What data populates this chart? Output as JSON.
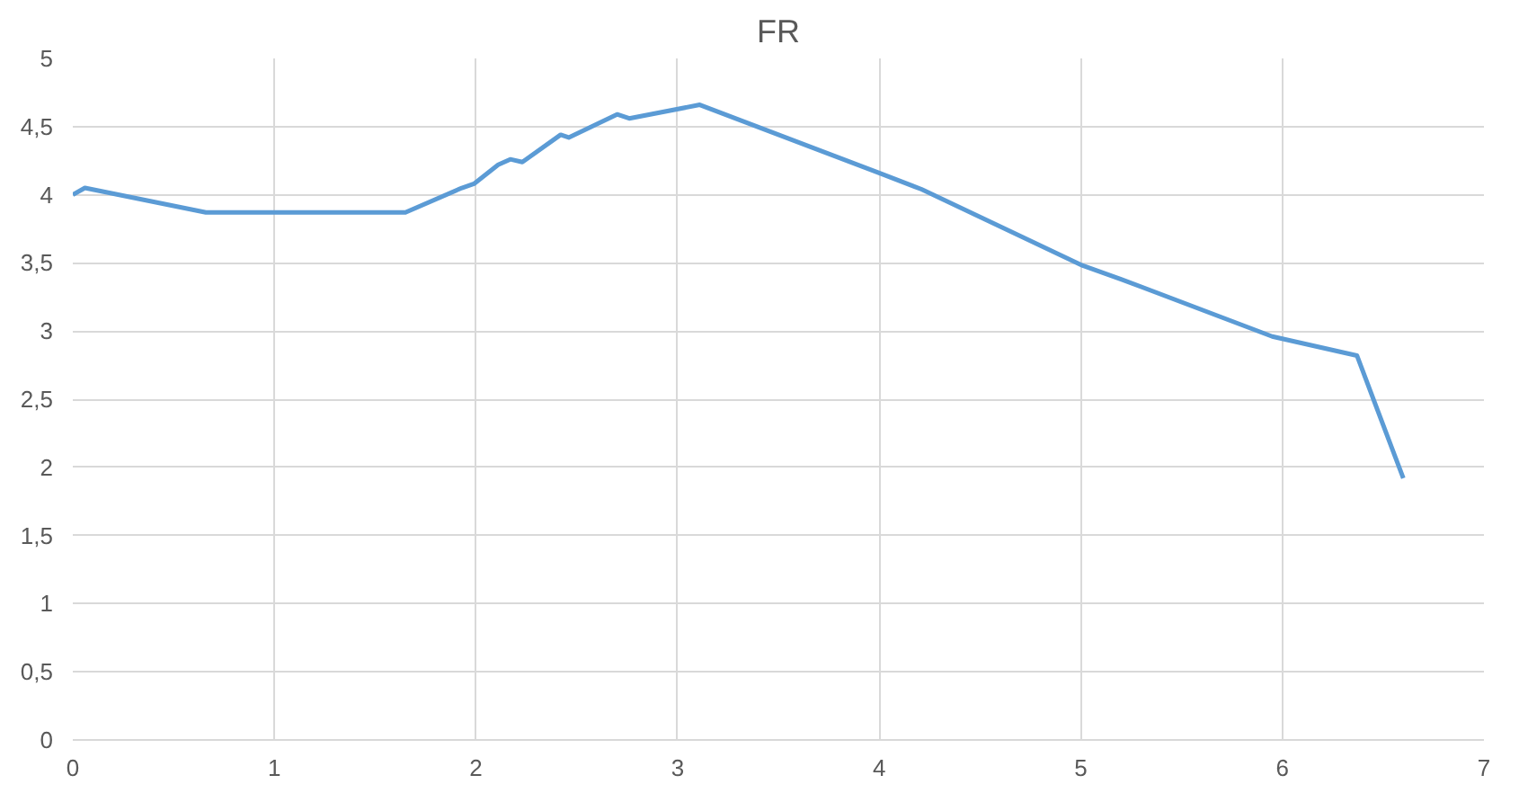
{
  "chart_data": {
    "type": "line",
    "title": "FR",
    "x": [
      0,
      0.06,
      0.66,
      1.65,
      1.93,
      1.99,
      2.11,
      2.17,
      2.23,
      2.42,
      2.46,
      2.7,
      2.76,
      3.11,
      4.0,
      4.21,
      5.01,
      5.2,
      5.95,
      6.37,
      6.6
    ],
    "series": [
      {
        "color": "#5b9bd5",
        "values": [
          4.0,
          4.05,
          3.87,
          3.87,
          4.05,
          4.08,
          4.22,
          4.26,
          4.24,
          4.44,
          4.42,
          4.59,
          4.56,
          4.66,
          4.16,
          4.04,
          3.48,
          3.38,
          2.96,
          2.82,
          1.92
        ]
      }
    ],
    "xlim": [
      0,
      7
    ],
    "xticks": [
      0,
      1,
      2,
      3,
      4,
      5,
      6,
      7
    ],
    "ylim": [
      0,
      5
    ],
    "yticks": [
      0,
      {
        "value": 0.5,
        "label": "0,5"
      },
      1,
      {
        "value": 1.5,
        "label": "1,5"
      },
      2,
      {
        "value": 2.5,
        "label": "2,5"
      },
      3,
      {
        "value": 3.5,
        "label": "3,5"
      },
      4,
      {
        "value": 4.5,
        "label": "4,5"
      },
      5
    ],
    "grid": true,
    "marker": "none",
    "line_style": "solid"
  }
}
